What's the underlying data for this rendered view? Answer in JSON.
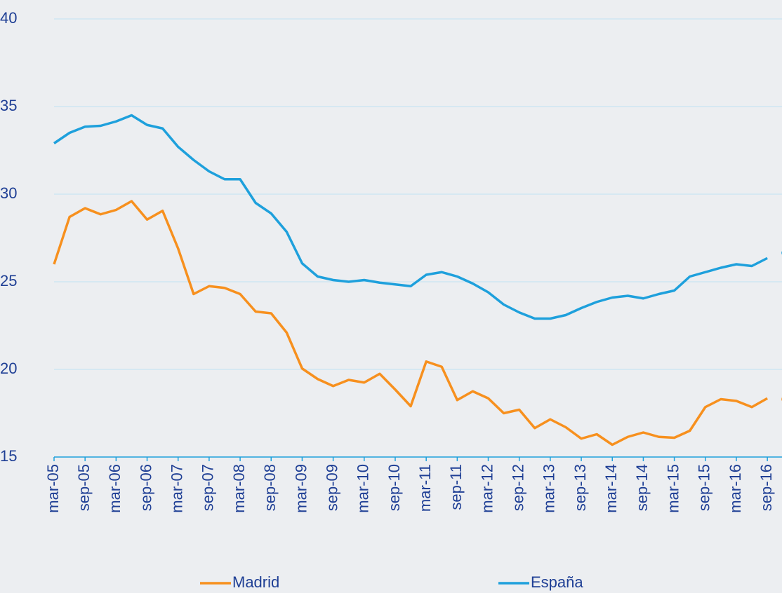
{
  "chart_data": {
    "type": "line",
    "categories": [
      "mar-05",
      null,
      "sep-05",
      null,
      "mar-06",
      null,
      "sep-06",
      null,
      "mar-07",
      null,
      "sep-07",
      null,
      "mar-08",
      null,
      "sep-08",
      null,
      "mar-09",
      null,
      "sep-09",
      null,
      "mar-10",
      null,
      "sep-10",
      null,
      "mar-11",
      null,
      "sep-11",
      null,
      "mar-12",
      null,
      "sep-12",
      null,
      "mar-13",
      null,
      "sep-13",
      null,
      "mar-14",
      null,
      "sep-14",
      null,
      "mar-15",
      null,
      "sep-15",
      null,
      "mar-16",
      null,
      "sep-16",
      null
    ],
    "series": [
      {
        "name": "Madrid",
        "color": "#f7901e",
        "values": [
          26.0,
          28.7,
          29.2,
          28.85,
          29.1,
          29.6,
          28.55,
          29.05,
          26.9,
          24.3,
          24.75,
          24.65,
          24.3,
          23.3,
          23.2,
          22.1,
          20.05,
          19.45,
          19.05,
          19.4,
          19.25,
          19.75,
          18.85,
          17.9,
          20.45,
          20.15,
          18.25,
          18.75,
          18.35,
          17.5,
          17.7,
          16.65,
          17.15,
          16.7,
          16.05,
          16.3,
          15.7,
          16.15,
          16.4,
          16.15,
          16.1,
          16.5,
          17.85,
          18.3,
          18.2,
          17.85,
          18.35,
          18.3
        ]
      },
      {
        "name": "España",
        "color": "#1ea0dc",
        "values": [
          32.9,
          33.5,
          33.85,
          33.9,
          34.15,
          34.5,
          33.95,
          33.75,
          32.7,
          31.95,
          31.3,
          30.85,
          30.85,
          29.5,
          28.9,
          27.85,
          26.05,
          25.3,
          25.1,
          25.0,
          25.1,
          24.95,
          24.85,
          24.75,
          25.4,
          25.55,
          25.3,
          24.9,
          24.4,
          23.7,
          23.25,
          22.9,
          22.9,
          23.1,
          23.5,
          23.85,
          24.1,
          24.2,
          24.05,
          24.3,
          24.5,
          25.3,
          25.55,
          25.8,
          26.0,
          25.9,
          26.35,
          26.65
        ]
      }
    ],
    "last_value_marker": "dot",
    "ylim": [
      15,
      40
    ],
    "yticks": [
      15,
      20,
      25,
      30,
      35,
      40
    ],
    "grid": true,
    "legend": "bottom"
  }
}
